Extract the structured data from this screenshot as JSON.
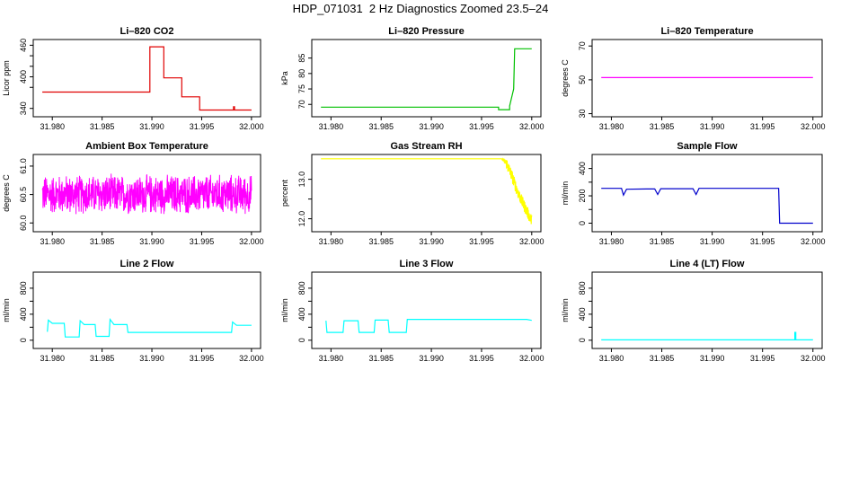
{
  "page_title": "HDP_071031  2 Hz Diagnostics Zoomed 23.5–24",
  "chart_data": [
    {
      "type": "line",
      "title": "Li–820 CO2",
      "ylabel": "Licor ppm",
      "color": "#e00000",
      "xlim": [
        31.979,
        32.0
      ],
      "ylim": [
        330,
        465
      ],
      "yticks": [
        340,
        380,
        400,
        420,
        440,
        460
      ],
      "yticklabels": [
        "340",
        "",
        "400",
        "",
        "",
        "460"
      ],
      "xticks": [
        31.98,
        31.985,
        31.99,
        31.995,
        32.0
      ],
      "xticklabels": [
        "31.980",
        "31.985",
        "31.990",
        "31.995",
        "32.000"
      ],
      "series": [
        {
          "x": [
            31.979,
            31.9898,
            31.9898,
            31.9912,
            31.9912,
            31.993,
            31.993,
            31.9948,
            31.9948,
            31.9982,
            31.9982,
            31.9983,
            31.9983,
            32.0
          ],
          "y": [
            371,
            371,
            457,
            457,
            398,
            398,
            362,
            362,
            337,
            337,
            343,
            343,
            337,
            337
          ]
        }
      ]
    },
    {
      "type": "line",
      "title": "Li–820 Pressure",
      "ylabel": "kPa",
      "color": "#00c000",
      "xlim": [
        31.979,
        32.0
      ],
      "ylim": [
        67,
        90
      ],
      "yticks": [
        70,
        75,
        80,
        85
      ],
      "yticklabels": [
        "70",
        "75",
        "80",
        "85"
      ],
      "xticks": [
        31.98,
        31.985,
        31.99,
        31.995,
        32.0
      ],
      "xticklabels": [
        "31.980",
        "31.985",
        "31.990",
        "31.995",
        "32.000"
      ],
      "series": [
        {
          "x": [
            31.979,
            31.9967,
            31.9967,
            31.9978,
            31.9978,
            31.9982,
            31.9983,
            32.0
          ],
          "y": [
            69.1,
            69.1,
            68.3,
            68.3,
            69.5,
            75,
            88,
            88
          ]
        }
      ]
    },
    {
      "type": "line",
      "title": "Li–820 Temperature",
      "ylabel": "degrees C",
      "color": "#ff00ff",
      "xlim": [
        31.979,
        32.0
      ],
      "ylim": [
        30,
        72
      ],
      "yticks": [
        30,
        50,
        70
      ],
      "yticklabels": [
        "30",
        "50",
        "70"
      ],
      "xticks": [
        31.98,
        31.985,
        31.99,
        31.995,
        32.0
      ],
      "xticklabels": [
        "31.980",
        "31.985",
        "31.990",
        "31.995",
        "32.000"
      ],
      "series": [
        {
          "x": [
            31.979,
            32.0
          ],
          "y": [
            51.3,
            51.3
          ]
        }
      ]
    },
    {
      "type": "line",
      "title": "Ambient Box Temperature",
      "ylabel": "degrees C",
      "color": "#ff00ff",
      "xlim": [
        31.979,
        32.0
      ],
      "ylim": [
        59.9,
        61.15
      ],
      "yticks": [
        60.0,
        60.5,
        61.0
      ],
      "yticklabels": [
        "60.0",
        "60.5",
        "61.0"
      ],
      "xticks": [
        31.98,
        31.985,
        31.99,
        31.995,
        32.0
      ],
      "xticklabels": [
        "31.980",
        "31.985",
        "31.990",
        "31.995",
        "32.000"
      ],
      "noise": {
        "x_start": 31.979,
        "x_end": 32.0,
        "center": 60.5,
        "amplitude": 0.38,
        "min": 59.95,
        "max": 61.07
      }
    },
    {
      "type": "line",
      "title": "Gas Stream RH",
      "ylabel": "percent",
      "color": "#ffff00",
      "xlim": [
        31.979,
        32.0
      ],
      "ylim": [
        11.75,
        13.55
      ],
      "yticks": [
        12.0,
        12.5,
        13.0
      ],
      "yticklabels": [
        "12.0",
        "",
        "13.0"
      ],
      "xticks": [
        31.98,
        31.985,
        31.99,
        31.995,
        32.0
      ],
      "xticklabels": [
        "31.980",
        "31.985",
        "31.990",
        "31.995",
        "32.000"
      ],
      "series": [
        {
          "x": [
            31.979,
            31.997,
            31.9975,
            31.998,
            31.9985,
            31.999,
            31.9995,
            32.0
          ],
          "y": [
            13.52,
            13.52,
            13.4,
            13.1,
            12.75,
            12.45,
            12.2,
            11.95
          ]
        }
      ],
      "noise": {
        "x_start": 31.997,
        "x_end": 32.0,
        "amplitude": 0.15
      }
    },
    {
      "type": "line",
      "title": "Sample Flow",
      "ylabel": "ml/min",
      "color": "#0000cc",
      "xlim": [
        31.979,
        32.0
      ],
      "ylim": [
        -40,
        480
      ],
      "yticks": [
        0,
        100,
        200,
        300,
        400
      ],
      "yticklabels": [
        "0",
        "",
        "200",
        "",
        "400"
      ],
      "xticks": [
        31.98,
        31.985,
        31.99,
        31.995,
        32.0
      ],
      "xticklabels": [
        "31.980",
        "31.985",
        "31.990",
        "31.995",
        "32.000"
      ],
      "series": [
        {
          "x": [
            31.979,
            31.981,
            31.9812,
            31.9815,
            31.9835,
            31.9843,
            31.9846,
            31.9849,
            31.9875,
            31.9881,
            31.9884,
            31.9887,
            31.9966,
            31.9967,
            32.0
          ],
          "y": [
            255,
            255,
            205,
            248,
            250,
            250,
            210,
            252,
            252,
            252,
            210,
            255,
            255,
            0,
            0
          ]
        }
      ]
    },
    {
      "type": "line",
      "title": "Line 2 Flow",
      "ylabel": "ml/min",
      "color": "#00ffff",
      "xlim": [
        31.979,
        32.0
      ],
      "ylim": [
        -80,
        1000
      ],
      "yticks": [
        0,
        200,
        400,
        600,
        800
      ],
      "yticklabels": [
        "0",
        "",
        "400",
        "",
        "800"
      ],
      "xticks": [
        31.98,
        31.985,
        31.99,
        31.995,
        32.0
      ],
      "xticklabels": [
        "31.980",
        "31.985",
        "31.990",
        "31.995",
        "32.000"
      ],
      "series": [
        {
          "x": [
            31.9795,
            31.9796,
            31.98,
            31.9812,
            31.9813,
            31.9827,
            31.9828,
            31.9832,
            31.9843,
            31.9844,
            31.9857,
            31.9858,
            31.9862,
            31.9875,
            31.9876,
            31.998,
            31.9981,
            31.9985,
            32.0
          ],
          "y": [
            130,
            310,
            260,
            260,
            50,
            50,
            300,
            240,
            240,
            60,
            60,
            320,
            240,
            240,
            120,
            120,
            280,
            230,
            230
          ]
        }
      ]
    },
    {
      "type": "line",
      "title": "Line 3 Flow",
      "ylabel": "ml/min",
      "color": "#00ffff",
      "xlim": [
        31.979,
        32.0
      ],
      "ylim": [
        -80,
        1000
      ],
      "yticks": [
        0,
        200,
        400,
        600,
        800
      ],
      "yticklabels": [
        "0",
        "",
        "400",
        "",
        "800"
      ],
      "xticks": [
        31.98,
        31.985,
        31.99,
        31.995,
        32.0
      ],
      "xticklabels": [
        "31.980",
        "31.985",
        "31.990",
        "31.995",
        "32.000"
      ],
      "series": [
        {
          "x": [
            31.9795,
            31.9796,
            31.9798,
            31.9812,
            31.9813,
            31.9827,
            31.9828,
            31.9843,
            31.9844,
            31.9857,
            31.9858,
            31.9875,
            31.9876,
            31.9995,
            32.0
          ],
          "y": [
            300,
            120,
            120,
            120,
            300,
            300,
            120,
            120,
            310,
            310,
            120,
            120,
            320,
            320,
            305
          ]
        }
      ]
    },
    {
      "type": "line",
      "title": "Line 4 (LT) Flow",
      "ylabel": "ml/min",
      "color": "#00ffff",
      "xlim": [
        31.979,
        32.0
      ],
      "ylim": [
        -80,
        1000
      ],
      "yticks": [
        0,
        200,
        400,
        600,
        800
      ],
      "yticklabels": [
        "0",
        "",
        "400",
        "",
        "800"
      ],
      "xticks": [
        31.98,
        31.985,
        31.99,
        31.995,
        32.0
      ],
      "xticklabels": [
        "31.980",
        "31.985",
        "31.990",
        "31.995",
        "32.000"
      ],
      "series": [
        {
          "x": [
            31.979,
            31.9982,
            31.9982,
            31.9983,
            31.9983,
            32.0
          ],
          "y": [
            5,
            5,
            120,
            120,
            5,
            5
          ]
        }
      ]
    }
  ]
}
